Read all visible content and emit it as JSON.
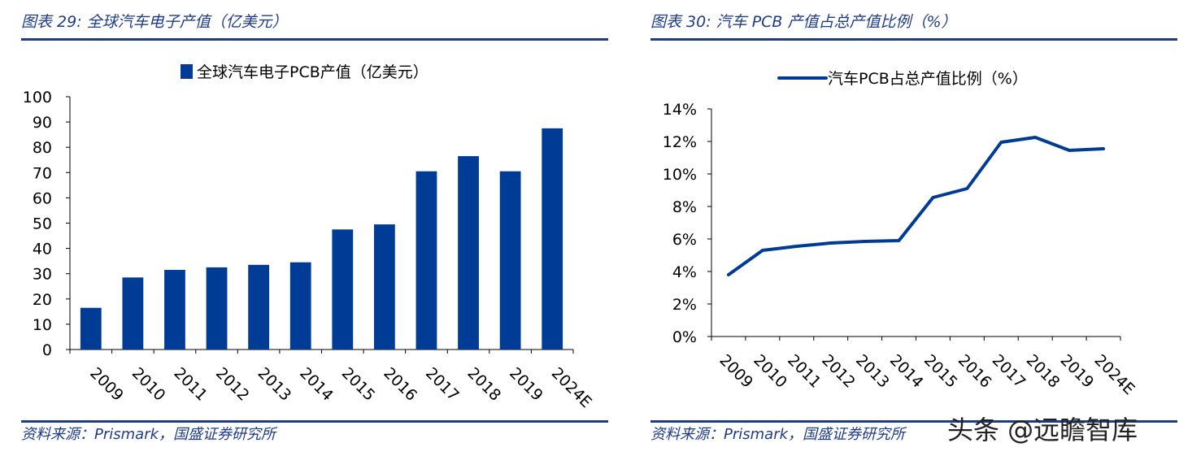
{
  "panels": {
    "left": {
      "title": "图表 29:  全球汽车电子产值（亿美元）",
      "source": "资料来源：Prismark，国盛证券研究所"
    },
    "right": {
      "title": "图表 30:  汽车 PCB 产值占总产值比例（%）",
      "source": "资料来源：Prismark，国盛证券研究所"
    }
  },
  "watermark": "头条 @远瞻智库",
  "colors": {
    "accent": "#1f3c88",
    "bar": "#003b96",
    "line": "#003b96"
  },
  "chart_data": [
    {
      "type": "bar",
      "categories": [
        "2009",
        "2010",
        "2011",
        "2012",
        "2013",
        "2014",
        "2015",
        "2016",
        "2017",
        "2018",
        "2019",
        "2024E"
      ],
      "series": [
        {
          "name": "全球汽车电子PCB产值（亿美元）",
          "values": [
            16.5,
            28.5,
            31.5,
            32.5,
            33.5,
            34.5,
            47.5,
            49.5,
            70.5,
            76.5,
            70.5,
            87.5
          ]
        }
      ],
      "ylim": [
        0,
        100
      ],
      "yticks": [
        "0",
        "10",
        "20",
        "30",
        "40",
        "50",
        "60",
        "70",
        "80",
        "90",
        "100"
      ],
      "legend_position": "top-center",
      "grid": false
    },
    {
      "type": "line",
      "categories": [
        "2009",
        "2010",
        "2011",
        "2012",
        "2013",
        "2014",
        "2015",
        "2016",
        "2017",
        "2018",
        "2019",
        "2024E"
      ],
      "series": [
        {
          "name": "汽车PCB占总产值比例（%）",
          "values": [
            3.8,
            5.3,
            5.55,
            5.75,
            5.85,
            5.9,
            8.55,
            9.1,
            11.95,
            12.25,
            11.45,
            11.55
          ]
        }
      ],
      "ylim": [
        0,
        14
      ],
      "yticks": [
        "0%",
        "2%",
        "4%",
        "6%",
        "8%",
        "10%",
        "12%",
        "14%"
      ],
      "legend_position": "top-center",
      "grid": false
    }
  ]
}
